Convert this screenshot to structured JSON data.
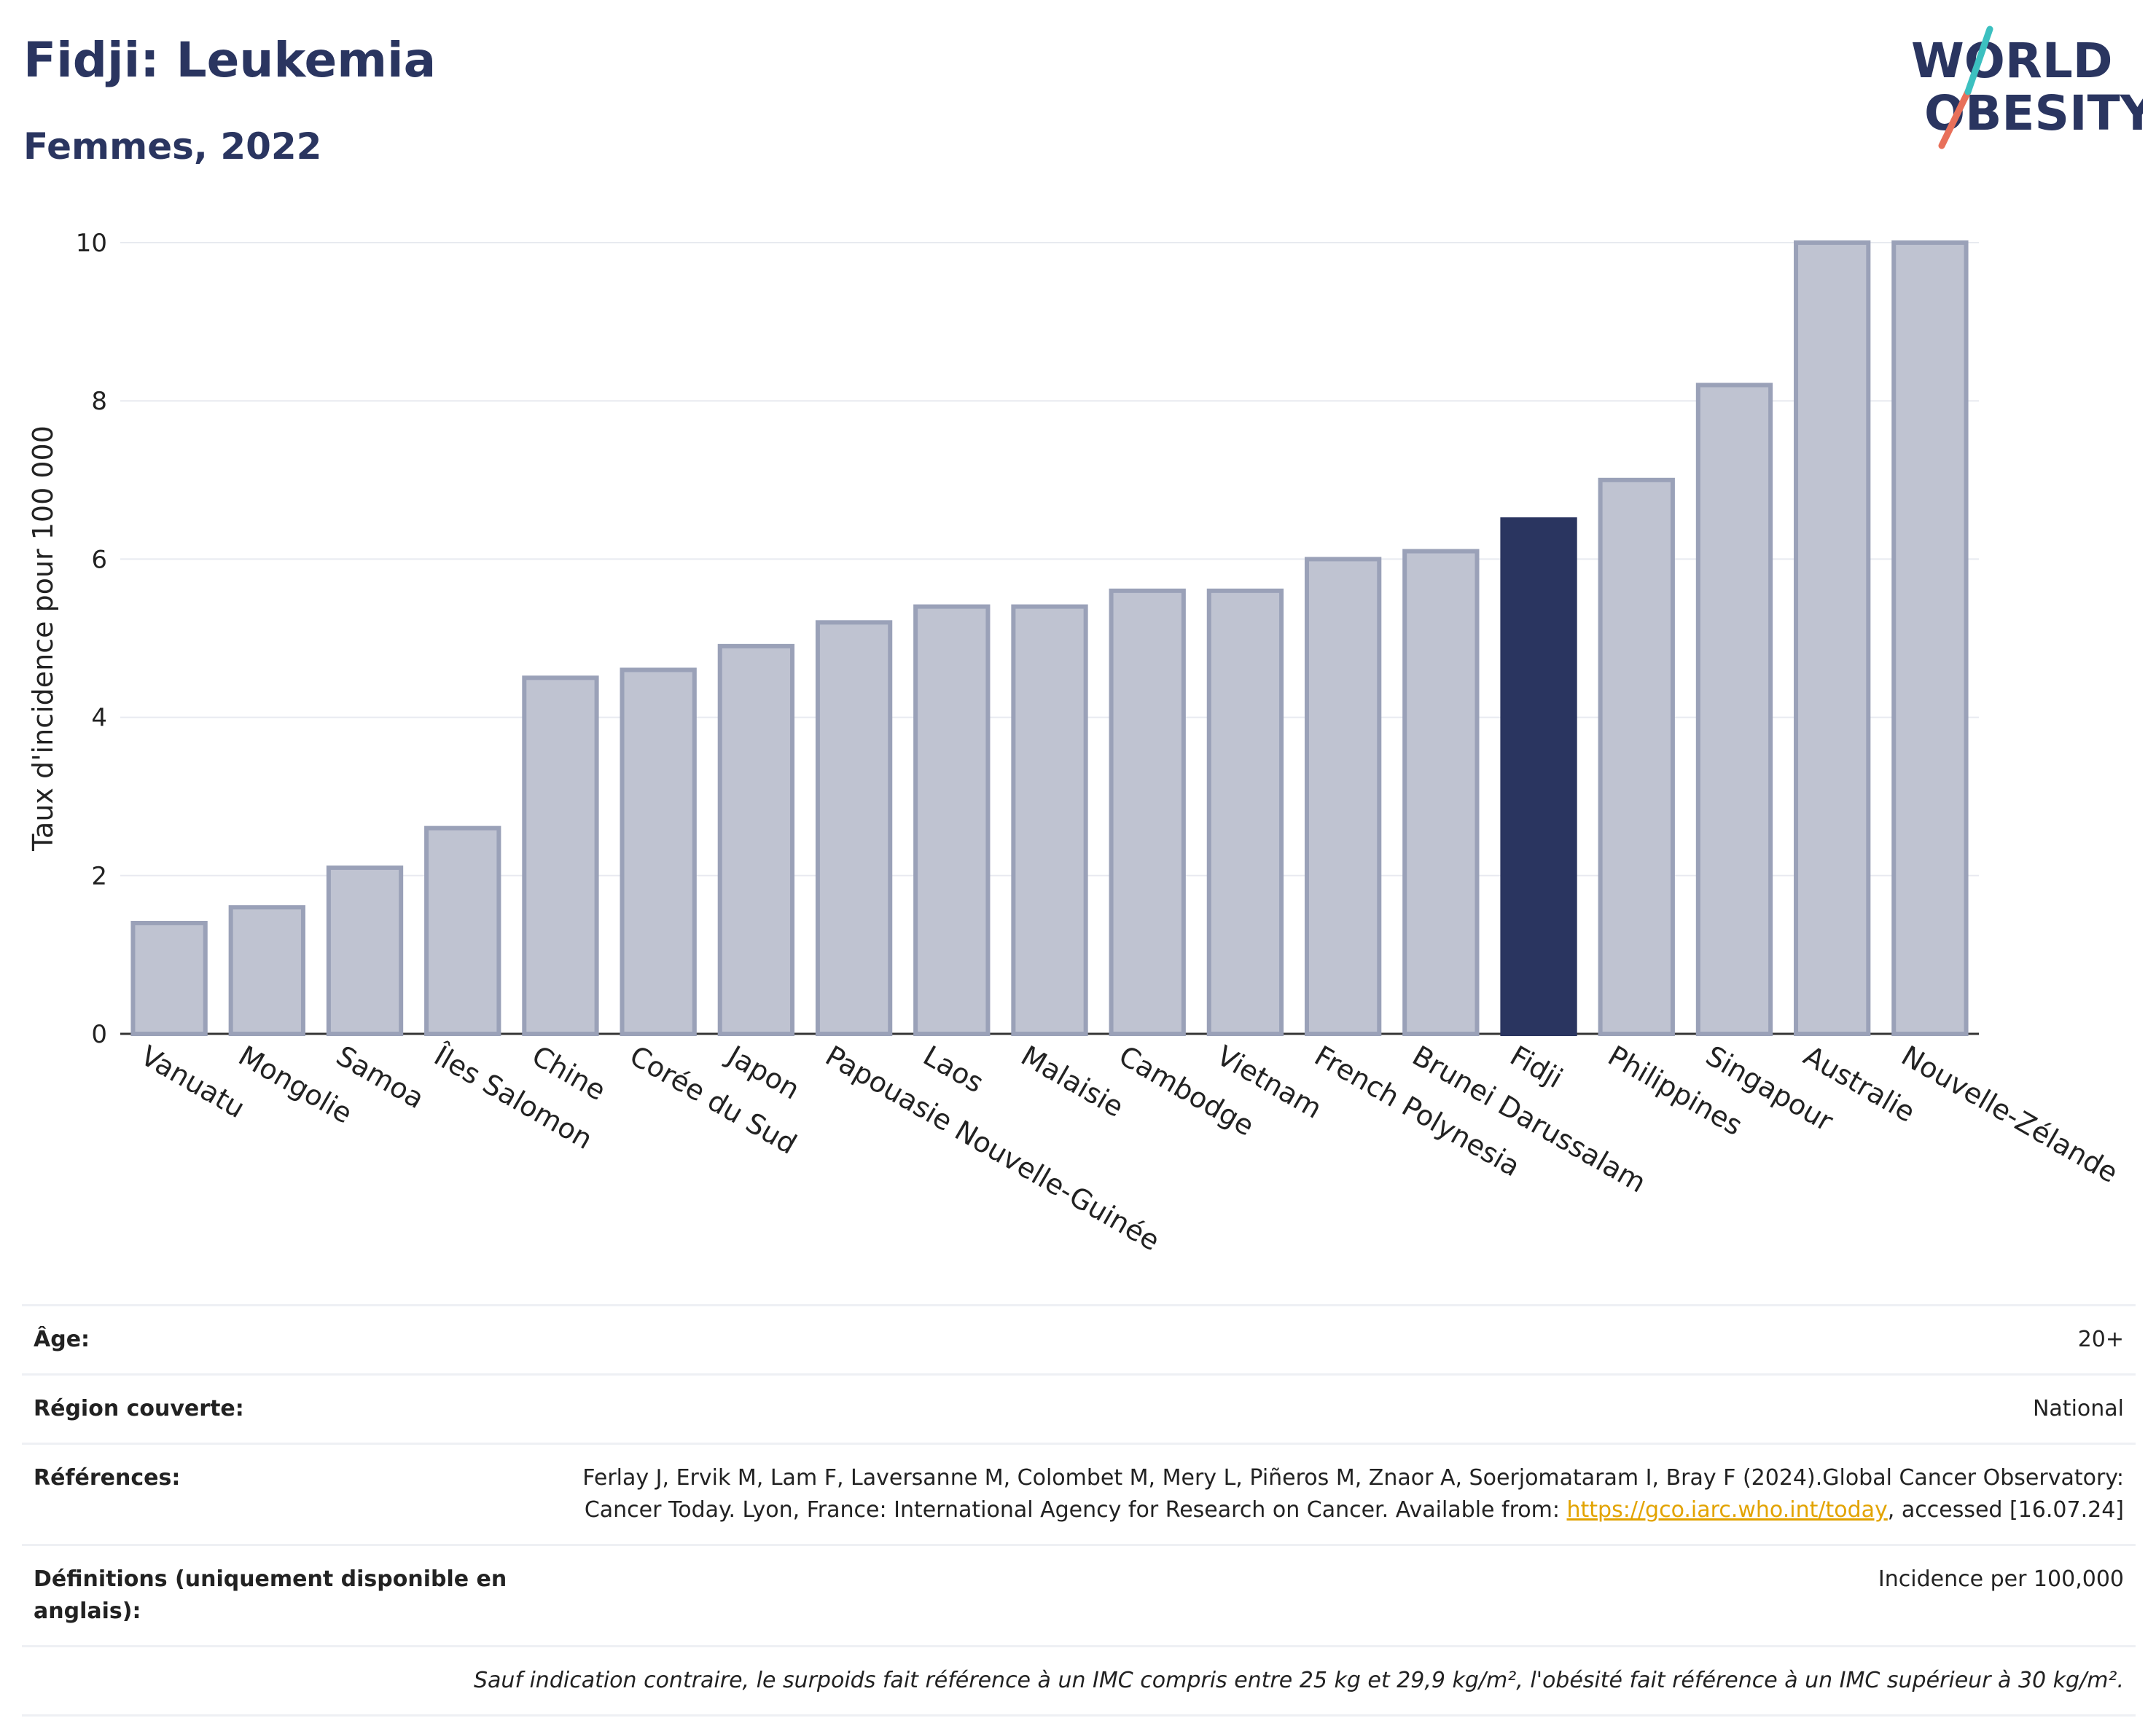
{
  "header": {
    "title": "Fidji: Leukemia",
    "subtitle": "Femmes, 2022",
    "logo_line1": "WORLD",
    "logo_line2": "OBESITY"
  },
  "chart_data": {
    "type": "bar",
    "ylabel": "Taux d'incidence pour 100 000",
    "ylim": [
      0,
      10
    ],
    "yticks": [
      0,
      2,
      4,
      6,
      8,
      10
    ],
    "grid": true,
    "highlight": "Fidji",
    "categories": [
      "Vanuatu",
      "Mongolie",
      "Samoa",
      "Îles Salomon",
      "Chine",
      "Corée du Sud",
      "Japon",
      "Papouasie Nouvelle-Guinée",
      "Laos",
      "Malaisie",
      "Cambodge",
      "Vietnam",
      "French Polynesia",
      "Brunei Darussalam",
      "Fidji",
      "Philippines",
      "Singapour",
      "Australie",
      "Nouvelle-Zélande"
    ],
    "values": [
      1.4,
      1.6,
      2.1,
      2.6,
      4.5,
      4.6,
      4.9,
      5.2,
      5.4,
      5.4,
      5.6,
      5.6,
      6.0,
      6.1,
      6.5,
      7.0,
      8.2,
      10.0,
      10.0
    ],
    "colors": {
      "bar": "#bfc3d1",
      "bar_stroke": "#9aa1b8",
      "highlight": "#2a3560"
    }
  },
  "info": {
    "age_label": "Âge:",
    "age_value": "20+",
    "region_label": "Région couverte:",
    "region_value": "National",
    "ref_label": "Références:",
    "ref_text_before": "Ferlay J, Ervik M, Lam F, Laversanne M, Colombet M, Mery L, Piñeros M, Znaor A, Soerjomataram I, Bray F (2024).Global Cancer Observatory: Cancer Today. Lyon, France: International Agency for Research on Cancer. Available from: ",
    "ref_link": "https://gco.iarc.who.int/today",
    "ref_text_after": ", accessed [16.07.24]",
    "def_label": "Définitions (uniquement disponible en anglais):",
    "def_value": "Incidence per 100,000",
    "note": "Sauf indication contraire, le surpoids fait référence à un IMC compris entre 25 kg et 29,9 kg/m², l'obésité fait référence à un IMC supérieur à 30 kg/m²."
  }
}
